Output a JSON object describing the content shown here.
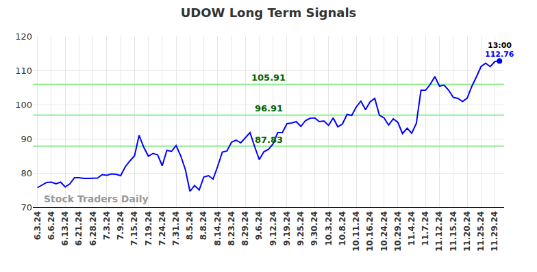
{
  "chart_data": {
    "type": "line",
    "title": "UDOW Long Term Signals",
    "categories": [
      "6.3.24",
      null,
      null,
      "6.6.24",
      null,
      null,
      "6.13.24",
      null,
      null,
      "6.21.24",
      null,
      null,
      "6.28.24",
      null,
      null,
      "7.3.24",
      null,
      null,
      "7.9.24",
      null,
      null,
      "7.15.24",
      null,
      null,
      "7.19.24",
      null,
      null,
      "7.24.24",
      null,
      null,
      "7.31.24",
      null,
      null,
      "8.5.24",
      null,
      null,
      "8.8.24",
      null,
      null,
      "8.14.24",
      null,
      null,
      "8.23.24",
      null,
      null,
      "8.29.24",
      null,
      null,
      "9.6.24",
      null,
      null,
      "9.12.24",
      null,
      null,
      "9.19.24",
      null,
      null,
      "9.25.24",
      null,
      null,
      "9.30.24",
      null,
      null,
      "10.3.24",
      null,
      null,
      "10.8.24",
      null,
      null,
      "10.11.24",
      null,
      null,
      "10.16.24",
      null,
      null,
      "10.24.24",
      null,
      null,
      "10.29.24",
      null,
      null,
      "11.4.24",
      null,
      null,
      "11.7.24",
      null,
      null,
      "11.12.24",
      null,
      null,
      "11.15.24",
      null,
      null,
      "11.20.24",
      null,
      null,
      "11.25.24",
      null,
      null,
      "11.29.24",
      null
    ],
    "values": [
      75.7,
      76.5,
      77.2,
      77.3,
      76.8,
      77.3,
      75.9,
      76.8,
      78.6,
      78.6,
      78.4,
      78.4,
      78.4,
      78.5,
      79.5,
      79.3,
      79.7,
      79.6,
      79.2,
      81.8,
      83.5,
      85.0,
      91.0,
      87.5,
      84.9,
      85.7,
      85.3,
      82.1,
      86.6,
      86.3,
      88.0,
      85.0,
      81.0,
      74.6,
      76.3,
      75.0,
      78.8,
      79.2,
      78.2,
      81.9,
      86.1,
      86.4,
      89.0,
      89.6,
      88.8,
      90.3,
      91.8,
      87.7,
      83.9,
      86.2,
      86.9,
      88.5,
      91.8,
      91.8,
      94.4,
      94.6,
      95.0,
      93.6,
      95.3,
      96.0,
      96.1,
      95.0,
      95.2,
      93.9,
      96.1,
      93.5,
      94.3,
      97.1,
      96.8,
      99.3,
      101.0,
      98.5,
      100.8,
      101.8,
      96.9,
      96.1,
      94.0,
      95.8,
      94.8,
      91.5,
      93.1,
      91.6,
      94.5,
      104.2,
      104.2,
      105.9,
      108.2,
      105.4,
      105.7,
      104.2,
      102.1,
      101.8,
      100.9,
      101.9,
      105.3,
      108.1,
      111.1,
      112.1,
      111.1,
      112.6,
      112.76
    ],
    "color": "#0000ff",
    "ylim": [
      70,
      120
    ],
    "yticks": [
      70,
      80,
      90,
      100,
      110,
      120
    ],
    "grid": true,
    "signal_lines": [
      105.91,
      96.91,
      87.83
    ],
    "last_time": "13:00",
    "last_value_label": "112.76",
    "watermark": "Stock Traders Daily"
  }
}
